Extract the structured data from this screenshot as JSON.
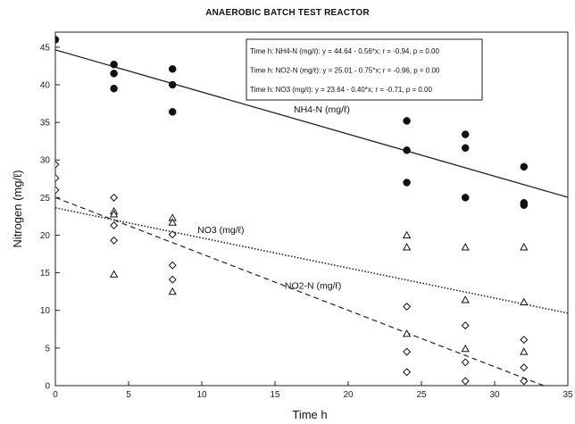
{
  "chart_data": {
    "type": "scatter",
    "title": "ANAEROBIC BATCH TEST REACTOR",
    "xlabel": "Time h",
    "ylabel": "Nitrogen (mg/ℓ)",
    "xlim": [
      0,
      35
    ],
    "ylim": [
      0,
      47
    ],
    "xticks": [
      0,
      5,
      10,
      15,
      20,
      25,
      30,
      35
    ],
    "yticks": [
      0,
      5,
      10,
      15,
      20,
      25,
      30,
      35,
      40,
      45
    ],
    "grid": false,
    "legend_placement": "top-right",
    "legend": [
      "Time h: NH4-N  (mg/ℓ): y = 44.64 - 0.56*x; r = -0.94, p = 0.00",
      "Time h: NO2-N (mg/ℓ): y = 25.01 - 0.75*x; r = -0.96, p = 0.00",
      "Time h: NO3 (mg/ℓ): y = 23.64 - 0.40*x; r = -0.71, p = 0.00"
    ],
    "series": [
      {
        "name": "NH4-N  (mg/ℓ)",
        "marker": "filled-circle",
        "line_style": "solid",
        "fit": {
          "intercept": 44.64,
          "slope": -0.56
        },
        "points": [
          [
            0,
            46
          ],
          [
            4,
            42.7
          ],
          [
            4,
            41.5
          ],
          [
            4,
            39.5
          ],
          [
            8,
            42.1
          ],
          [
            8,
            40
          ],
          [
            8,
            36.4
          ],
          [
            24,
            35.2
          ],
          [
            24,
            31.3
          ],
          [
            24,
            27
          ],
          [
            28,
            33.4
          ],
          [
            28,
            31.6
          ],
          [
            28,
            25
          ],
          [
            32,
            29.1
          ],
          [
            32,
            24.3
          ],
          [
            32,
            24
          ]
        ]
      },
      {
        "name": "NO2-N (mg/ℓ)",
        "marker": "open-diamond",
        "line_style": "dashed",
        "fit": {
          "intercept": 25.01,
          "slope": -0.75
        },
        "points": [
          [
            0,
            29.4
          ],
          [
            0,
            27.6
          ],
          [
            0,
            26
          ],
          [
            4,
            25
          ],
          [
            4,
            21.3
          ],
          [
            4,
            19.3
          ],
          [
            8,
            20.1
          ],
          [
            8,
            16
          ],
          [
            8,
            14.1
          ],
          [
            24,
            10.5
          ],
          [
            24,
            4.5
          ],
          [
            24,
            1.8
          ],
          [
            28,
            8
          ],
          [
            28,
            3.1
          ],
          [
            28,
            0.6
          ],
          [
            32,
            6.1
          ],
          [
            32,
            2.4
          ],
          [
            32,
            0.6
          ]
        ]
      },
      {
        "name": "NO3 (mg/ℓ)",
        "marker": "open-triangle",
        "line_style": "dotted",
        "fit": {
          "intercept": 23.64,
          "slope": -0.4
        },
        "points": [
          [
            4,
            23.2
          ],
          [
            4,
            22.8
          ],
          [
            4,
            14.8
          ],
          [
            8,
            22.3
          ],
          [
            8,
            21.7
          ],
          [
            8,
            12.5
          ],
          [
            24,
            20
          ],
          [
            24,
            18.4
          ],
          [
            24,
            6.9
          ],
          [
            28,
            18.4
          ],
          [
            28,
            11.4
          ],
          [
            28,
            4.9
          ],
          [
            32,
            18.4
          ],
          [
            32,
            11.1
          ],
          [
            32,
            4.5
          ]
        ]
      }
    ],
    "annotations": [
      {
        "text": "NH4-N  (mg/ℓ)",
        "x": 18.2,
        "y": 36.3
      },
      {
        "text": "NO3 (mg/ℓ)",
        "x": 11.3,
        "y": 20.3
      },
      {
        "text": "NO2-N (mg/ℓ)",
        "x": 17.6,
        "y": 12.9
      }
    ]
  }
}
